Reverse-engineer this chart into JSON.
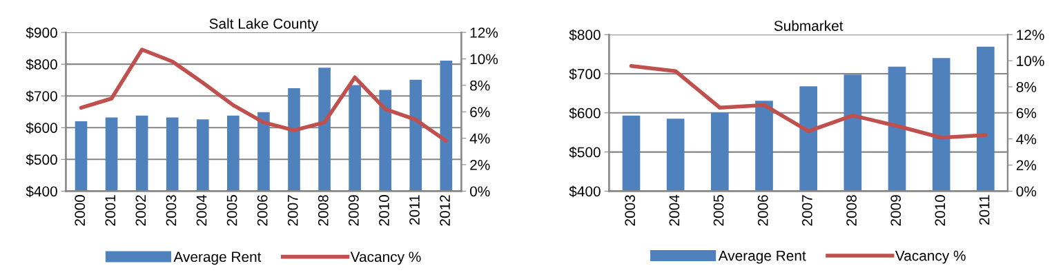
{
  "chart_data": [
    {
      "type": "bar",
      "title": "Salt Lake County",
      "categories": [
        "2000",
        "2001",
        "2002",
        "2003",
        "2004",
        "2005",
        "2006",
        "2007",
        "2008",
        "2009",
        "2010",
        "2011",
        "2012"
      ],
      "series": [
        {
          "name": "Average Rent",
          "color": "#4f81bd",
          "values": [
            620,
            632,
            638,
            632,
            626,
            638,
            649,
            724,
            789,
            734,
            719,
            751,
            811
          ]
        },
        {
          "name": "Vacancy %",
          "type": "line",
          "axis": "y2",
          "color": "#c0504d",
          "values": [
            6.3,
            7.0,
            10.7,
            9.8,
            8.2,
            6.5,
            5.2,
            4.6,
            5.2,
            8.6,
            6.2,
            5.4,
            3.8
          ]
        }
      ],
      "ylim": [
        400,
        900
      ],
      "yticks": [
        {
          "value": 400,
          "label": "$400"
        },
        {
          "value": 500,
          "label": "$500"
        },
        {
          "value": 600,
          "label": "$600"
        },
        {
          "value": 700,
          "label": "$700"
        },
        {
          "value": 800,
          "label": "$800"
        },
        {
          "value": 900,
          "label": "$900"
        }
      ],
      "y2lim": [
        0,
        12
      ],
      "y2ticks": [
        {
          "value": 0,
          "label": "0%"
        },
        {
          "value": 2,
          "label": "2%"
        },
        {
          "value": 4,
          "label": "4%"
        },
        {
          "value": 6,
          "label": "6%"
        },
        {
          "value": 8,
          "label": "8%"
        },
        {
          "value": 10,
          "label": "10%"
        },
        {
          "value": 12,
          "label": "12%"
        }
      ],
      "grid": "y",
      "legend": "bottom"
    },
    {
      "type": "bar",
      "title": "Submarket",
      "categories": [
        "2003",
        "2004",
        "2005",
        "2006",
        "2007",
        "2008",
        "2009",
        "2010",
        "2011"
      ],
      "series": [
        {
          "name": "Average Rent",
          "color": "#4f81bd",
          "values": [
            593,
            585,
            601,
            631,
            668,
            698,
            718,
            740,
            769
          ]
        },
        {
          "name": "Vacancy %",
          "type": "line",
          "axis": "y2",
          "color": "#c0504d",
          "values": [
            9.6,
            9.2,
            6.4,
            6.6,
            4.6,
            5.8,
            5.0,
            4.1,
            4.3
          ]
        }
      ],
      "ylim": [
        400,
        800
      ],
      "yticks": [
        {
          "value": 400,
          "label": "$400"
        },
        {
          "value": 500,
          "label": "$500"
        },
        {
          "value": 600,
          "label": "$600"
        },
        {
          "value": 700,
          "label": "$700"
        },
        {
          "value": 800,
          "label": "$800"
        }
      ],
      "y2lim": [
        0,
        12
      ],
      "y2ticks": [
        {
          "value": 0,
          "label": "0%"
        },
        {
          "value": 2,
          "label": "2%"
        },
        {
          "value": 4,
          "label": "4%"
        },
        {
          "value": 6,
          "label": "6%"
        },
        {
          "value": 8,
          "label": "8%"
        },
        {
          "value": 10,
          "label": "10%"
        },
        {
          "value": 12,
          "label": "12%"
        }
      ],
      "grid": "y",
      "legend": "bottom"
    }
  ]
}
